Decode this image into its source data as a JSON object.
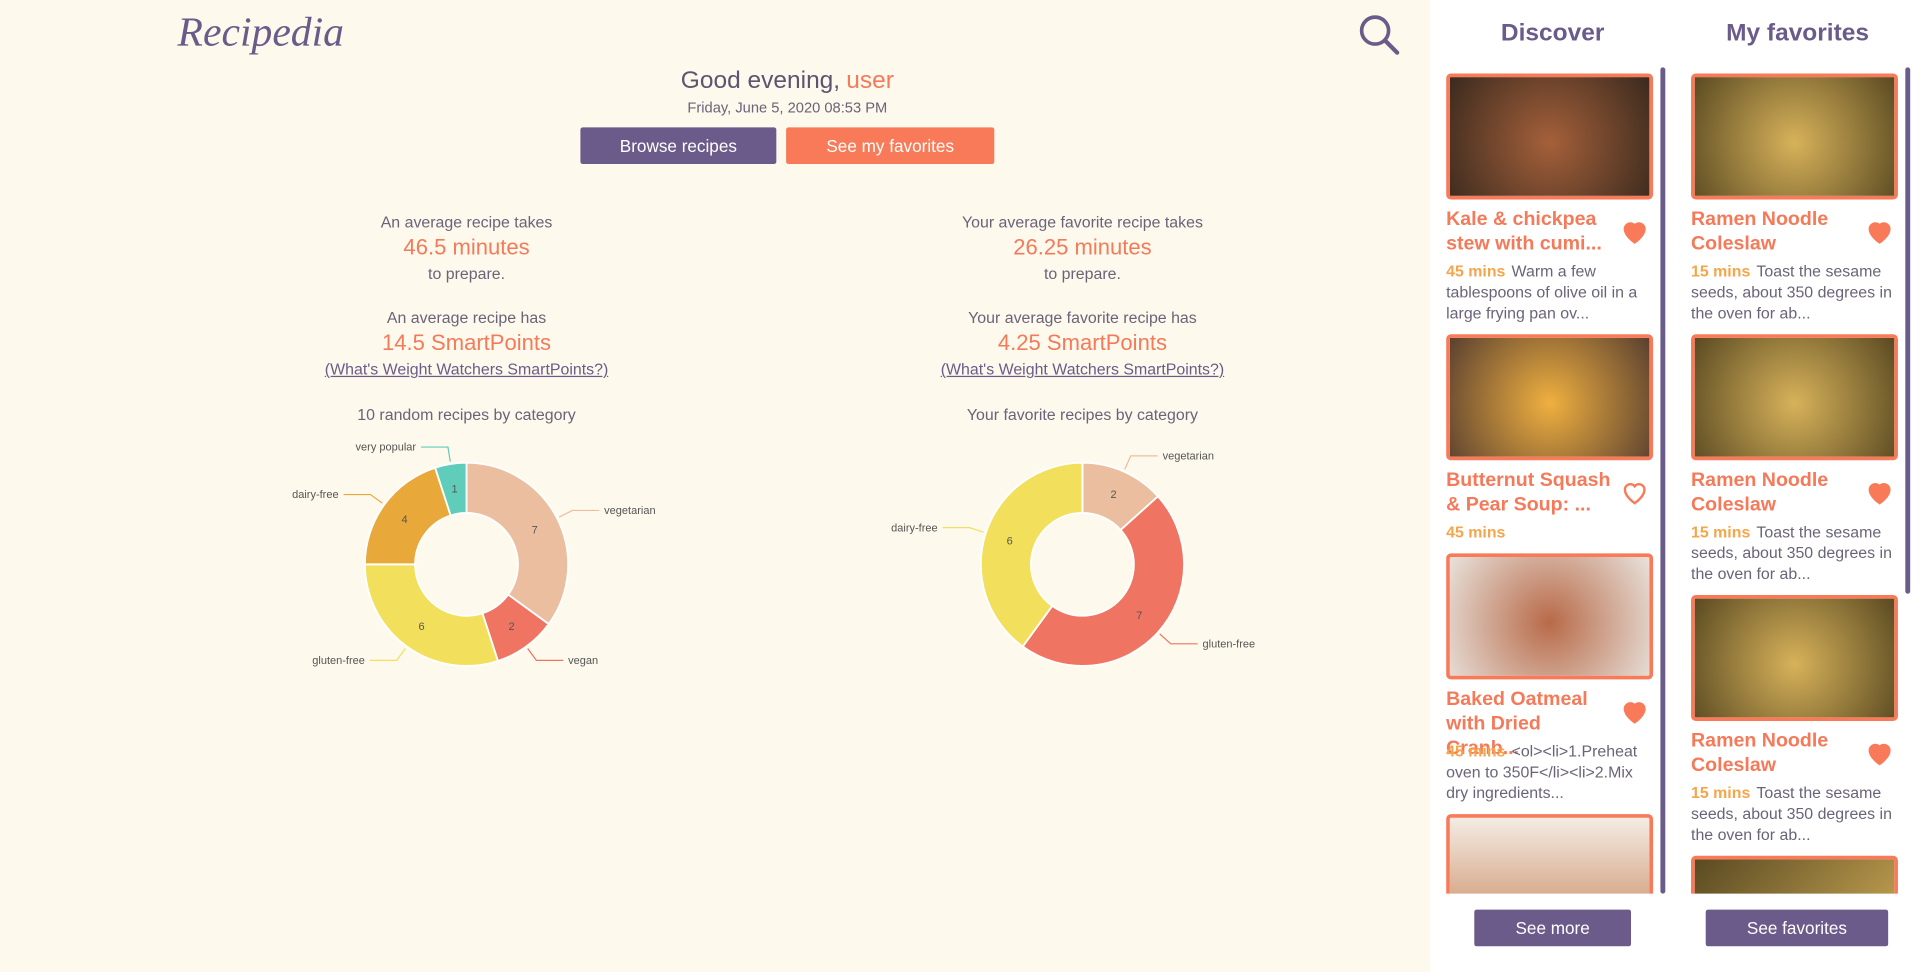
{
  "header": {
    "logo": "Recipedia"
  },
  "greeting": {
    "text": "Good evening,",
    "user": "user",
    "date": "Friday, June 5, 2020 08:53 PM"
  },
  "buttons": [
    "Browse recipes",
    "See my favorites"
  ],
  "stats": [
    {
      "takes": "An average recipe takes",
      "minutes": "46.5 minutes",
      "prepare": "to prepare.",
      "has": "An average recipe has",
      "points": "14.5 SmartPoints",
      "link": "(What's Weight Watchers SmartPoints?)"
    },
    {
      "takes": "Your average favorite recipe takes",
      "minutes": "26.25 minutes",
      "prepare": "to prepare.",
      "has": "Your average favorite recipe has",
      "points": "4.25 SmartPoints",
      "link": "(What's Weight Watchers SmartPoints?)"
    }
  ],
  "chart_data": [
    {
      "type": "pie",
      "donut": true,
      "title": "10 random recipes by category",
      "categories": [
        "vegetarian",
        "vegan",
        "gluten-free",
        "dairy-free",
        "very popular"
      ],
      "values": [
        7,
        2,
        6,
        4,
        1
      ],
      "colors": [
        "#ebbe9f",
        "#f07462",
        "#f2e05c",
        "#e9a83a",
        "#5fcdb9"
      ]
    },
    {
      "type": "pie",
      "donut": true,
      "title": "Your favorite recipes by category",
      "categories": [
        "vegetarian",
        "gluten-free",
        "dairy-free"
      ],
      "values": [
        2,
        7,
        6
      ],
      "colors": [
        "#ebbe9f",
        "#f07462",
        "#f2e05c"
      ]
    }
  ],
  "discover": {
    "title": "Discover",
    "button": "See more",
    "cards": [
      {
        "title": "Kale & chickpea stew with cumi...",
        "time": "45 mins",
        "desc": "Warm a few tablespoons of olive oil in a large frying pan ov...",
        "favorite": true
      },
      {
        "title": "Butternut Squash & Pear Soup: ...",
        "time": "45 mins",
        "favorite": false
      },
      {
        "title": "Baked Oatmeal with Dried Cranb...",
        "time": "45 mins",
        "desc": "<ol><li>1.Preheat oven to 350F</li><li>2.Mix dry ingredients...",
        "favorite": true
      }
    ]
  },
  "favorites": {
    "title": "My favorites",
    "button": "See favorites",
    "cards": [
      {
        "title": "Ramen Noodle Coleslaw",
        "time": "15 mins",
        "desc": "Toast the sesame seeds, about 350 degrees in the oven for ab...",
        "favorite": true
      },
      {
        "title": "Ramen Noodle Coleslaw",
        "time": "15 mins",
        "desc": "Toast the sesame seeds, about 350 degrees in the oven for ab...",
        "favorite": true
      },
      {
        "title": "Ramen Noodle Coleslaw",
        "time": "15 mins",
        "desc": "Toast the sesame seeds, about 350 degrees in the oven for ab...",
        "favorite": true
      }
    ]
  }
}
